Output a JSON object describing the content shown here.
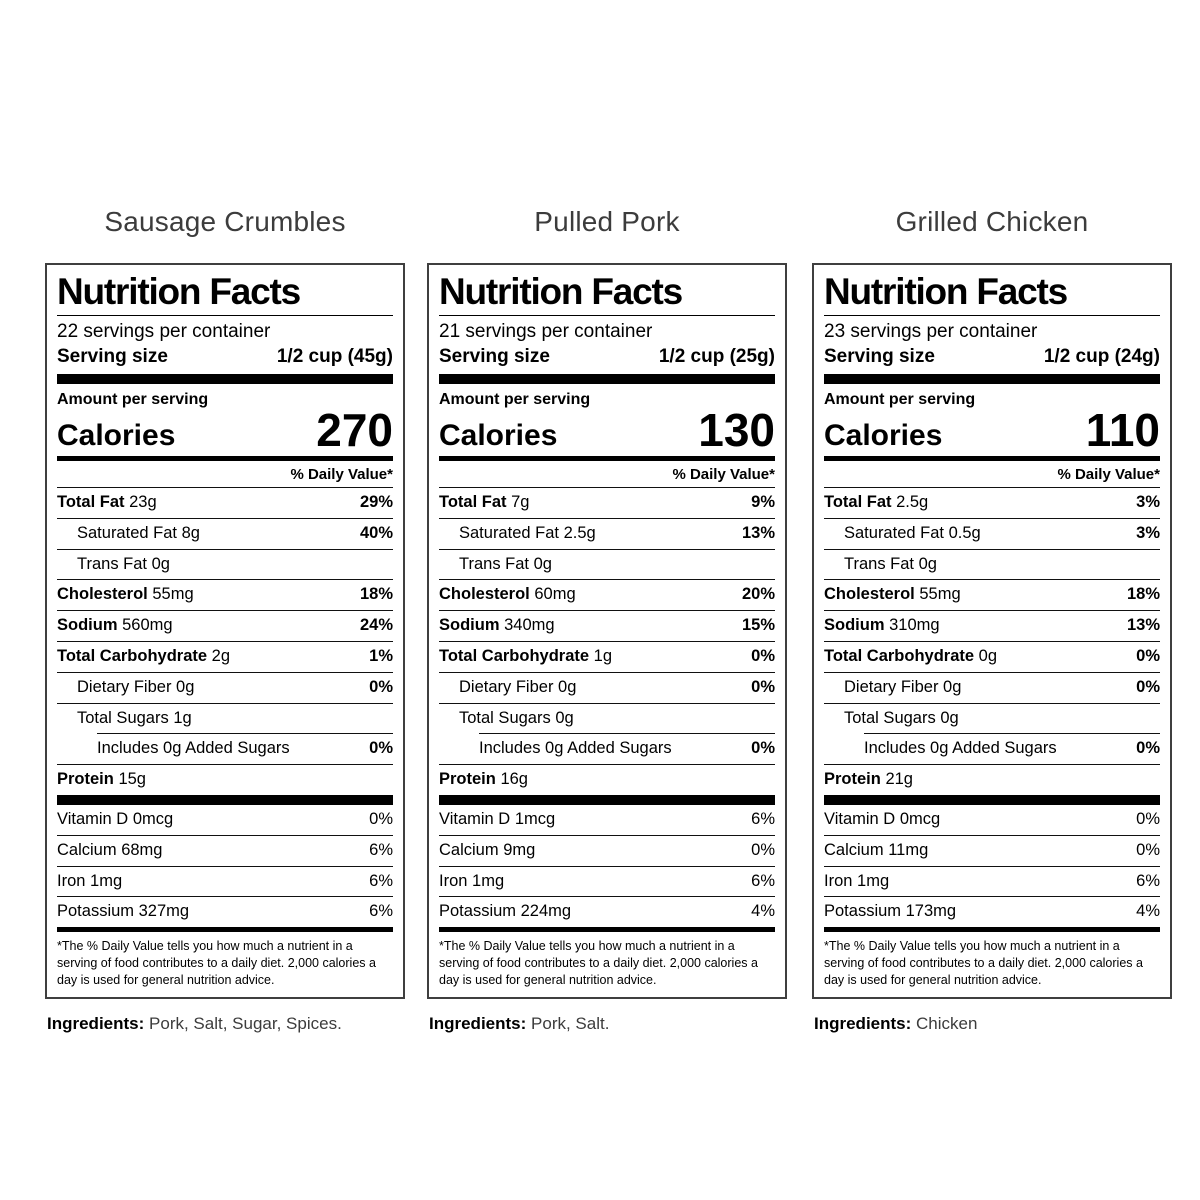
{
  "labels": [
    {
      "title": "Sausage Crumbles",
      "heading": "Nutrition Facts",
      "servings": "22 servings per container",
      "serving_size_label": "Serving size",
      "serving_size_value": "1/2 cup (45g)",
      "amount_per_serving": "Amount per serving",
      "calories_label": "Calories",
      "calories_value": "270",
      "daily_value_header": "% Daily Value*",
      "rows": [
        {
          "name": "Total Fat",
          "amount": "23g",
          "dv": "29%",
          "style": "major"
        },
        {
          "name": "Saturated Fat",
          "amount": "8g",
          "dv": "40%",
          "style": "sub"
        },
        {
          "name": "Trans Fat",
          "amount": "0g",
          "dv": "",
          "style": "sub"
        },
        {
          "name": "Cholesterol",
          "amount": "55mg",
          "dv": "18%",
          "style": "major"
        },
        {
          "name": "Sodium",
          "amount": "560mg",
          "dv": "24%",
          "style": "major"
        },
        {
          "name": "Total Carbohydrate",
          "amount": "2g",
          "dv": "1%",
          "style": "major"
        },
        {
          "name": "Dietary Fiber",
          "amount": "0g",
          "dv": "0%",
          "style": "sub"
        },
        {
          "name": "Total Sugars",
          "amount": "1g",
          "dv": "",
          "style": "sub"
        },
        {
          "name": "Includes 0g Added Sugars",
          "amount": "",
          "dv": "0%",
          "style": "sub2"
        },
        {
          "name": "Protein",
          "amount": "15g",
          "dv": "",
          "style": "major"
        }
      ],
      "vitamins": [
        {
          "name": "Vitamin D",
          "amount": "0mcg",
          "dv": "0%"
        },
        {
          "name": "Calcium",
          "amount": "68mg",
          "dv": "6%"
        },
        {
          "name": "Iron",
          "amount": "1mg",
          "dv": "6%"
        },
        {
          "name": "Potassium",
          "amount": "327mg",
          "dv": "6%"
        }
      ],
      "footnote": "*The % Daily Value tells you how much a nutrient in a serving of food contributes to a daily diet. 2,000 calories a day is used for general nutrition advice.",
      "ingredients_label": "Ingredients:",
      "ingredients_value": "Pork, Salt, Sugar, Spices."
    },
    {
      "title": "Pulled Pork",
      "heading": "Nutrition Facts",
      "servings": "21 servings per container",
      "serving_size_label": "Serving size",
      "serving_size_value": "1/2 cup (25g)",
      "amount_per_serving": "Amount per serving",
      "calories_label": "Calories",
      "calories_value": "130",
      "daily_value_header": "% Daily Value*",
      "rows": [
        {
          "name": "Total Fat",
          "amount": "7g",
          "dv": "9%",
          "style": "major"
        },
        {
          "name": "Saturated Fat",
          "amount": "2.5g",
          "dv": "13%",
          "style": "sub"
        },
        {
          "name": "Trans Fat",
          "amount": "0g",
          "dv": "",
          "style": "sub"
        },
        {
          "name": "Cholesterol",
          "amount": "60mg",
          "dv": "20%",
          "style": "major"
        },
        {
          "name": "Sodium",
          "amount": "340mg",
          "dv": "15%",
          "style": "major"
        },
        {
          "name": "Total Carbohydrate",
          "amount": "1g",
          "dv": "0%",
          "style": "major"
        },
        {
          "name": "Dietary Fiber",
          "amount": "0g",
          "dv": "0%",
          "style": "sub"
        },
        {
          "name": "Total Sugars",
          "amount": "0g",
          "dv": "",
          "style": "sub"
        },
        {
          "name": "Includes 0g Added Sugars",
          "amount": "",
          "dv": "0%",
          "style": "sub2"
        },
        {
          "name": "Protein",
          "amount": "16g",
          "dv": "",
          "style": "major"
        }
      ],
      "vitamins": [
        {
          "name": "Vitamin D",
          "amount": "1mcg",
          "dv": "6%"
        },
        {
          "name": "Calcium",
          "amount": "9mg",
          "dv": "0%"
        },
        {
          "name": "Iron",
          "amount": "1mg",
          "dv": "6%"
        },
        {
          "name": "Potassium",
          "amount": "224mg",
          "dv": "4%"
        }
      ],
      "footnote": "*The % Daily Value tells you how much a nutrient in a serving of food contributes to a daily diet. 2,000 calories a day is used for general nutrition advice.",
      "ingredients_label": "Ingredients:",
      "ingredients_value": "Pork, Salt."
    },
    {
      "title": "Grilled Chicken",
      "heading": "Nutrition Facts",
      "servings": "23 servings per container",
      "serving_size_label": "Serving size",
      "serving_size_value": "1/2 cup (24g)",
      "amount_per_serving": "Amount per serving",
      "calories_label": "Calories",
      "calories_value": "110",
      "daily_value_header": "% Daily Value*",
      "rows": [
        {
          "name": "Total Fat",
          "amount": "2.5g",
          "dv": "3%",
          "style": "major"
        },
        {
          "name": "Saturated Fat",
          "amount": "0.5g",
          "dv": "3%",
          "style": "sub"
        },
        {
          "name": "Trans Fat",
          "amount": "0g",
          "dv": "",
          "style": "sub"
        },
        {
          "name": "Cholesterol",
          "amount": "55mg",
          "dv": "18%",
          "style": "major"
        },
        {
          "name": "Sodium",
          "amount": "310mg",
          "dv": "13%",
          "style": "major"
        },
        {
          "name": "Total Carbohydrate",
          "amount": "0g",
          "dv": "0%",
          "style": "major"
        },
        {
          "name": "Dietary Fiber",
          "amount": "0g",
          "dv": "0%",
          "style": "sub"
        },
        {
          "name": "Total Sugars",
          "amount": "0g",
          "dv": "",
          "style": "sub"
        },
        {
          "name": "Includes 0g Added Sugars",
          "amount": "",
          "dv": "0%",
          "style": "sub2"
        },
        {
          "name": "Protein",
          "amount": "21g",
          "dv": "",
          "style": "major"
        }
      ],
      "vitamins": [
        {
          "name": "Vitamin D",
          "amount": "0mcg",
          "dv": "0%"
        },
        {
          "name": "Calcium",
          "amount": "11mg",
          "dv": "0%"
        },
        {
          "name": "Iron",
          "amount": "1mg",
          "dv": "6%"
        },
        {
          "name": "Potassium",
          "amount": "173mg",
          "dv": "4%"
        }
      ],
      "footnote": "*The % Daily Value tells you how much a nutrient in a serving of food contributes to a daily diet. 2,000 calories a day is used for general nutrition advice.",
      "ingredients_label": "Ingredients:",
      "ingredients_value": "Chicken"
    }
  ]
}
